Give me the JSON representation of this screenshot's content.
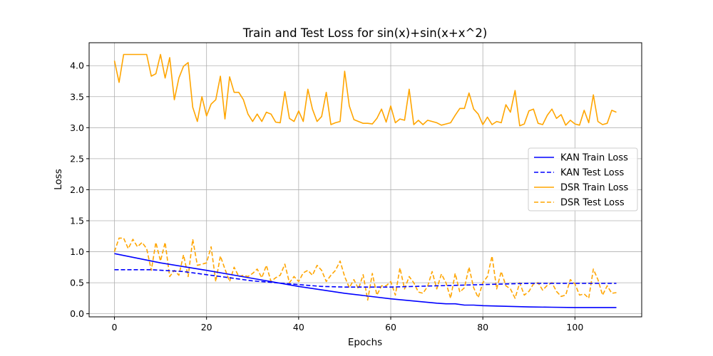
{
  "chart_data": {
    "type": "line",
    "title": "Train and Test Loss for sin(x)+sin(x+x^2)",
    "xlabel": "Epochs",
    "ylabel": "Loss",
    "xlim": [
      -5.5,
      114.5
    ],
    "ylim": [
      -0.05,
      4.37
    ],
    "xticks": [
      0,
      20,
      40,
      60,
      80,
      100
    ],
    "yticks": [
      0.0,
      0.5,
      1.0,
      1.5,
      2.0,
      2.5,
      3.0,
      3.5,
      4.0
    ],
    "ytick_labels": [
      "0.0",
      "0.5",
      "1.0",
      "1.5",
      "2.0",
      "2.5",
      "3.0",
      "3.5",
      "4.0"
    ],
    "grid": true,
    "legend_position": "center-right",
    "series": [
      {
        "name": "KAN Train Loss",
        "color": "#0000ff",
        "style": "solid",
        "x": [
          0,
          10,
          20,
          30,
          40,
          50,
          60,
          70,
          72,
          74,
          76,
          78,
          80,
          85,
          90,
          95,
          100,
          105,
          109
        ],
        "y": [
          0.97,
          0.82,
          0.7,
          0.57,
          0.44,
          0.33,
          0.24,
          0.17,
          0.16,
          0.16,
          0.14,
          0.14,
          0.13,
          0.12,
          0.11,
          0.105,
          0.1,
          0.1,
          0.1
        ]
      },
      {
        "name": "KAN Test Loss",
        "color": "#0000ff",
        "style": "dashed",
        "x": [
          0,
          8,
          15,
          20,
          25,
          30,
          35,
          40,
          45,
          50,
          55,
          60,
          65,
          70,
          75,
          80,
          85,
          90,
          95,
          100,
          105,
          109
        ],
        "y": [
          0.71,
          0.71,
          0.68,
          0.63,
          0.58,
          0.53,
          0.5,
          0.47,
          0.44,
          0.43,
          0.43,
          0.43,
          0.44,
          0.45,
          0.46,
          0.47,
          0.48,
          0.49,
          0.49,
          0.49,
          0.49,
          0.49
        ]
      },
      {
        "name": "DSR Train Loss",
        "color": "#ffa500",
        "style": "solid",
        "x": [
          0,
          1,
          2,
          3,
          4,
          5,
          6,
          7,
          8,
          9,
          10,
          11,
          12,
          13,
          14,
          15,
          16,
          17,
          18,
          19,
          20,
          21,
          22,
          23,
          24,
          25,
          26,
          27,
          28,
          29,
          30,
          31,
          32,
          33,
          34,
          35,
          36,
          37,
          38,
          39,
          40,
          41,
          42,
          43,
          44,
          45,
          46,
          47,
          48,
          49,
          50,
          51,
          52,
          53,
          54,
          55,
          56,
          57,
          58,
          59,
          60,
          61,
          62,
          63,
          64,
          65,
          66,
          67,
          68,
          69,
          70,
          71,
          72,
          73,
          74,
          75,
          76,
          77,
          78,
          79,
          80,
          81,
          82,
          83,
          84,
          85,
          86,
          87,
          88,
          89,
          90,
          91,
          92,
          93,
          94,
          95,
          96,
          97,
          98,
          99,
          100,
          101,
          102,
          103,
          104,
          105,
          106,
          107,
          108,
          109
        ],
        "y": [
          4.08,
          3.73,
          4.18,
          4.18,
          4.18,
          4.18,
          4.18,
          4.18,
          3.83,
          3.87,
          4.18,
          3.8,
          4.13,
          3.45,
          3.8,
          3.99,
          4.05,
          3.33,
          3.1,
          3.5,
          3.19,
          3.38,
          3.45,
          3.83,
          3.14,
          3.82,
          3.57,
          3.57,
          3.45,
          3.22,
          3.1,
          3.22,
          3.1,
          3.25,
          3.22,
          3.09,
          3.08,
          3.58,
          3.15,
          3.1,
          3.27,
          3.1,
          3.62,
          3.3,
          3.1,
          3.18,
          3.57,
          3.05,
          3.08,
          3.1,
          3.91,
          3.35,
          3.13,
          3.1,
          3.07,
          3.07,
          3.06,
          3.15,
          3.3,
          3.09,
          3.35,
          3.08,
          3.14,
          3.12,
          3.62,
          3.05,
          3.12,
          3.05,
          3.12,
          3.1,
          3.08,
          3.04,
          3.06,
          3.08,
          3.2,
          3.31,
          3.31,
          3.56,
          3.3,
          3.22,
          3.05,
          3.17,
          3.05,
          3.1,
          3.08,
          3.37,
          3.25,
          3.6,
          3.03,
          3.06,
          3.27,
          3.3,
          3.07,
          3.05,
          3.2,
          3.3,
          3.15,
          3.21,
          3.04,
          3.12,
          3.06,
          3.04,
          3.28,
          3.08,
          3.53,
          3.1,
          3.05,
          3.07,
          3.28,
          3.25
        ]
      },
      {
        "name": "DSR Test Loss",
        "color": "#ffa500",
        "style": "dashed",
        "x": [
          0,
          1,
          2,
          3,
          4,
          5,
          6,
          7,
          8,
          9,
          10,
          11,
          12,
          13,
          14,
          15,
          16,
          17,
          18,
          19,
          20,
          21,
          22,
          23,
          24,
          25,
          26,
          27,
          28,
          29,
          30,
          31,
          32,
          33,
          34,
          35,
          36,
          37,
          38,
          39,
          40,
          41,
          42,
          43,
          44,
          45,
          46,
          47,
          48,
          49,
          50,
          51,
          52,
          53,
          54,
          55,
          56,
          57,
          58,
          59,
          60,
          61,
          62,
          63,
          64,
          65,
          66,
          67,
          68,
          69,
          70,
          71,
          72,
          73,
          74,
          75,
          76,
          77,
          78,
          79,
          80,
          81,
          82,
          83,
          84,
          85,
          86,
          87,
          88,
          89,
          90,
          91,
          92,
          93,
          94,
          95,
          96,
          97,
          98,
          99,
          100,
          101,
          102,
          103,
          104,
          105,
          106,
          107,
          108,
          109
        ],
        "y": [
          1.0,
          1.22,
          1.22,
          1.05,
          1.2,
          1.08,
          1.15,
          1.05,
          0.7,
          1.15,
          0.85,
          1.15,
          0.6,
          0.7,
          0.62,
          0.95,
          0.6,
          1.2,
          0.78,
          0.8,
          0.82,
          1.08,
          0.52,
          0.93,
          0.72,
          0.52,
          0.75,
          0.6,
          0.62,
          0.6,
          0.65,
          0.72,
          0.58,
          0.78,
          0.52,
          0.58,
          0.62,
          0.8,
          0.5,
          0.6,
          0.52,
          0.66,
          0.7,
          0.62,
          0.78,
          0.7,
          0.52,
          0.62,
          0.7,
          0.85,
          0.6,
          0.42,
          0.55,
          0.4,
          0.63,
          0.22,
          0.65,
          0.3,
          0.45,
          0.45,
          0.52,
          0.3,
          0.74,
          0.4,
          0.6,
          0.5,
          0.35,
          0.33,
          0.44,
          0.68,
          0.4,
          0.64,
          0.5,
          0.25,
          0.65,
          0.35,
          0.42,
          0.75,
          0.42,
          0.26,
          0.5,
          0.6,
          0.93,
          0.4,
          0.68,
          0.45,
          0.4,
          0.25,
          0.5,
          0.3,
          0.36,
          0.48,
          0.5,
          0.38,
          0.46,
          0.5,
          0.36,
          0.28,
          0.3,
          0.55,
          0.48,
          0.3,
          0.32,
          0.25,
          0.72,
          0.55,
          0.3,
          0.45,
          0.33,
          0.34
        ]
      }
    ]
  }
}
